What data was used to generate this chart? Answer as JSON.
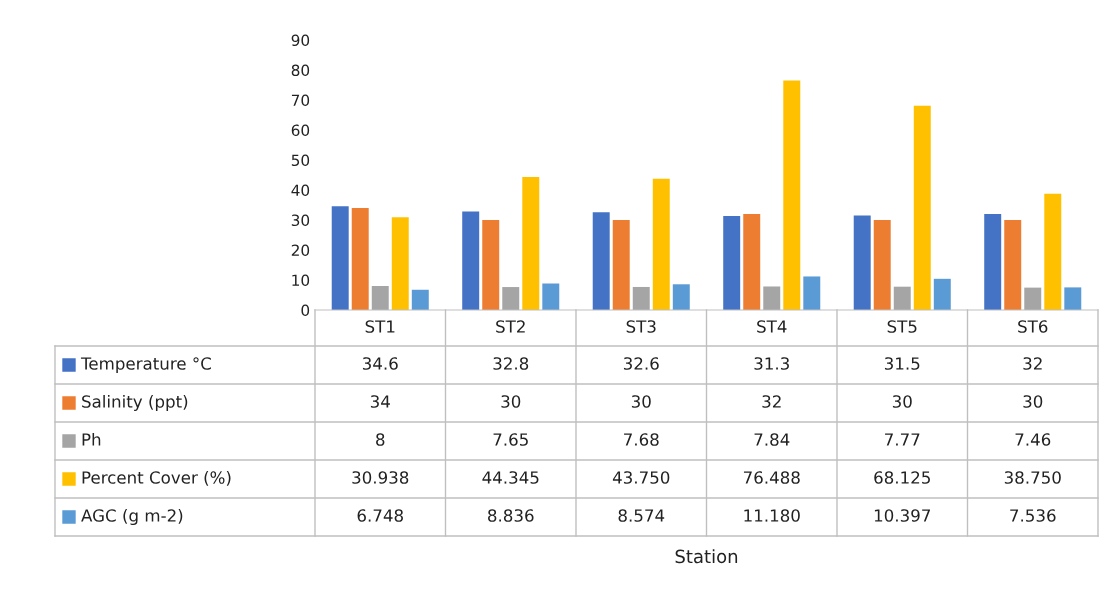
{
  "chart_data": {
    "type": "bar",
    "annotations": [
      "Station"
    ],
    "categories": [
      "ST1",
      "ST2",
      "ST3",
      "ST4",
      "ST5",
      "ST6"
    ],
    "series": [
      {
        "name": "Temperature °C",
        "color": "#4472c4",
        "values": [
          34.6,
          32.8,
          32.6,
          31.3,
          31.5,
          32
        ],
        "value_labels": [
          "34.6",
          "32.8",
          "32.6",
          "31.3",
          "31.5",
          "32"
        ]
      },
      {
        "name": "Salinity (ppt)",
        "color": "#ed7d31",
        "values": [
          34,
          30,
          30,
          32,
          30,
          30
        ],
        "value_labels": [
          "34",
          "30",
          "30",
          "32",
          "30",
          "30"
        ]
      },
      {
        "name": "Ph",
        "color": "#a5a5a5",
        "values": [
          8,
          7.65,
          7.68,
          7.84,
          7.77,
          7.46
        ],
        "value_labels": [
          "8",
          "7.65",
          "7.68",
          "7.84",
          "7.77",
          "7.46"
        ]
      },
      {
        "name": "Percent Cover (%)",
        "color": "#ffc000",
        "values": [
          30.938,
          44.345,
          43.75,
          76.488,
          68.125,
          38.75
        ],
        "value_labels": [
          "30.938",
          "44.345",
          "43.750",
          "76.488",
          "68.125",
          "38.750"
        ]
      },
      {
        "name": "AGC (g m-2)",
        "color": "#5b9bd5",
        "values": [
          6.748,
          8.836,
          8.574,
          11.18,
          10.397,
          7.536
        ],
        "value_labels": [
          "6.748",
          "8.836",
          "8.574",
          "11.180",
          "10.397",
          "7.536"
        ]
      }
    ],
    "ylim": [
      0,
      90
    ],
    "yticks": [
      0,
      10,
      20,
      30,
      40,
      50,
      60,
      70,
      80,
      90
    ],
    "legend": "bottom left",
    "grid": false
  }
}
